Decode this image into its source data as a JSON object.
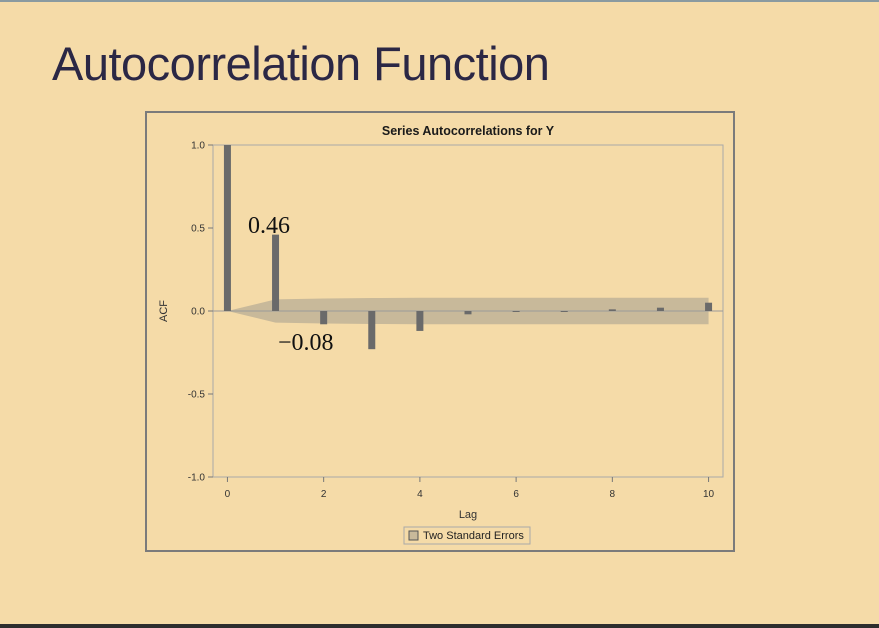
{
  "slide": {
    "title": "Autocorrelation Function"
  },
  "chart_data": {
    "type": "bar",
    "title": "Series Autocorrelations for Y",
    "xlabel": "Lag",
    "ylabel": "ACF",
    "x": [
      0,
      1,
      2,
      3,
      4,
      5,
      6,
      7,
      8,
      9,
      10
    ],
    "values": [
      1.0,
      0.46,
      -0.08,
      -0.23,
      -0.12,
      -0.02,
      -0.005,
      0.0,
      0.01,
      0.02,
      0.05
    ],
    "xlim": [
      -0.3,
      10.3
    ],
    "ylim": [
      -1.0,
      1.0
    ],
    "xticks": [
      0,
      2,
      4,
      6,
      8,
      10
    ],
    "xtick_labels": [
      "0",
      "2",
      "4",
      "6",
      "8",
      "10"
    ],
    "yticks": [
      1.0,
      0.5,
      0.0,
      -0.5,
      -1.0
    ],
    "ytick_labels": [
      "1.0",
      "0.5",
      "0.0",
      "-0.5",
      "-1.0"
    ],
    "confidence_band": {
      "name": "Two Standard Errors",
      "lags": [
        0,
        1,
        2,
        3,
        4,
        5,
        6,
        7,
        8,
        9,
        10
      ],
      "upper": [
        0.0,
        0.07,
        0.075,
        0.078,
        0.08,
        0.08,
        0.08,
        0.08,
        0.08,
        0.08,
        0.08
      ],
      "lower": [
        0.0,
        -0.07,
        -0.075,
        -0.078,
        -0.08,
        -0.08,
        -0.08,
        -0.08,
        -0.08,
        -0.08,
        -0.08
      ]
    },
    "legend": {
      "placement": "bottom-center",
      "entries": [
        "Two Standard Errors"
      ]
    },
    "annotations": [
      {
        "text": "0.46",
        "lag": 1,
        "value": 0.46
      },
      {
        "text": "−0.08",
        "lag": 2,
        "value": -0.08
      }
    ],
    "colors": {
      "bar": "#6a6a6a",
      "band": "#c8b99a",
      "axis": "#a9a9a9",
      "frame": "#7b7b7b"
    },
    "grid": false
  }
}
